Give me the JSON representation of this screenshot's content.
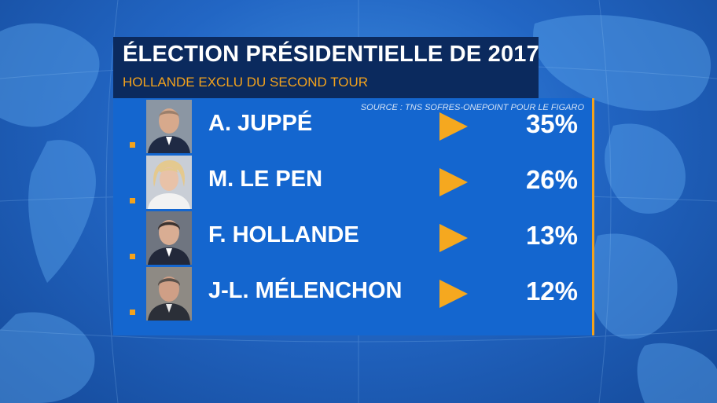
{
  "header": {
    "title": "ÉLECTION PRÉSIDENTIELLE DE 2017",
    "subtitle": "HOLLANDE EXCLU DU SECOND TOUR"
  },
  "source": "SOURCE : TNS SOFRES-ONEPOINT POUR LE FIGARO",
  "colors": {
    "accent": "#f3a21c",
    "panel": "#1466cf",
    "title_box": "#0b2a5e"
  },
  "candidates": [
    {
      "name": "A. JUPPÉ",
      "percent": "35%"
    },
    {
      "name": "M. LE PEN",
      "percent": "26%"
    },
    {
      "name": "F. HOLLANDE",
      "percent": "13%"
    },
    {
      "name": "J-L. MÉLENCHON",
      "percent": "12%"
    }
  ]
}
